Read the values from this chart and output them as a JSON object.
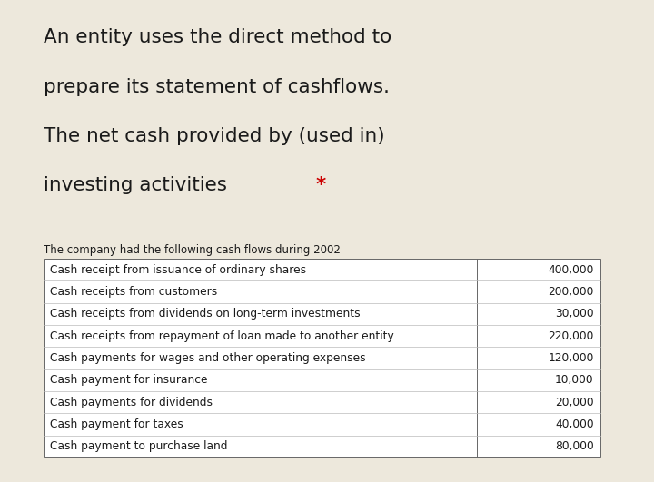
{
  "title_lines": [
    "An entity uses the direct method to",
    "prepare its statement of cashflows.",
    "The net cash provided by (used in)",
    "investing activities "
  ],
  "title_star": "*",
  "subtitle": "The company had the following cash flows during 2002",
  "table_rows": [
    [
      "Cash receipt from issuance of ordinary shares",
      "400,000"
    ],
    [
      "Cash receipts from customers",
      "200,000"
    ],
    [
      "Cash receipts from dividends on long-term investments",
      "30,000"
    ],
    [
      "Cash receipts from repayment of loan made to another entity",
      "220,000"
    ],
    [
      "Cash payments for wages and other operating expenses",
      "120,000"
    ],
    [
      "Cash payment for insurance",
      "10,000"
    ],
    [
      "Cash payments for dividends",
      "20,000"
    ],
    [
      "Cash payment for taxes",
      "40,000"
    ],
    [
      "Cash payment to purchase land",
      "80,000"
    ]
  ],
  "bg_color": "#ede8dc",
  "main_bg": "#ffffff",
  "title_fontsize": 15.5,
  "subtitle_fontsize": 8.5,
  "table_fontsize": 8.8,
  "star_color": "#cc0000",
  "text_color": "#1a1a1a",
  "table_border_color": "#666666",
  "table_line_color": "#bbbbbb"
}
